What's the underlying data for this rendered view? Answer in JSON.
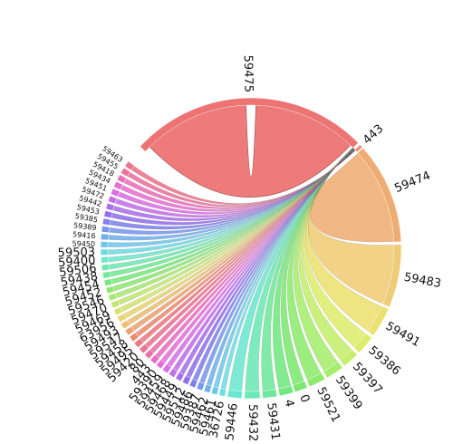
{
  "chart_data": {
    "type": "chord",
    "title": "",
    "segments": [
      {
        "label": "59475",
        "color": "#ee7373"
      },
      {
        "label": "443",
        "color": "#ec8a6d"
      },
      {
        "label": "59474",
        "color": "#eeac72"
      },
      {
        "label": "59483",
        "color": "#efcc76"
      },
      {
        "label": "59491",
        "color": "#ece070"
      },
      {
        "label": "59386",
        "color": "#dced6b"
      },
      {
        "label": "59397",
        "color": "#c4ee6c"
      },
      {
        "label": "59399",
        "color": "#a6ed6c"
      },
      {
        "label": "59521",
        "color": "#8eea6e"
      },
      {
        "label": "0",
        "color": "#7ce871"
      },
      {
        "label": "4",
        "color": "#72e880"
      },
      {
        "label": "59431",
        "color": "#6fe79a"
      },
      {
        "label": "59432",
        "color": "#6ce8b6"
      },
      {
        "label": "59446",
        "color": "#6ce6cf"
      },
      {
        "label": "36726",
        "color": "#6ddde6"
      },
      {
        "label": "59461",
        "color": "#6ec8ea"
      },
      {
        "label": "59462",
        "color": "#70b0ec"
      },
      {
        "label": "59387",
        "color": "#7898ee"
      },
      {
        "label": "59486",
        "color": "#7e80ee"
      },
      {
        "label": "59512",
        "color": "#906fee"
      },
      {
        "label": "59449",
        "color": "#a96eee"
      },
      {
        "label": "59468",
        "color": "#c16eec"
      },
      {
        "label": "59459",
        "color": "#d86fe8"
      },
      {
        "label": "59390",
        "color": "#e56ed9"
      },
      {
        "label": "443",
        "color": "#e86ec0"
      },
      {
        "label": "80",
        "color": "#ea70a8"
      },
      {
        "label": "59420",
        "color": "#ec7292"
      },
      {
        "label": "59495",
        "color": "#ec7680"
      },
      {
        "label": "59458",
        "color": "#ec8a70"
      },
      {
        "label": "59547",
        "color": "#eca26f"
      },
      {
        "label": "59493",
        "color": "#ecbd72"
      },
      {
        "label": "63956",
        "color": "#e6d470"
      },
      {
        "label": "59469",
        "color": "#d5e46f"
      },
      {
        "label": "59470",
        "color": "#bfe86f"
      },
      {
        "label": "59546",
        "color": "#a6e870"
      },
      {
        "label": "59452",
        "color": "#8ce872"
      },
      {
        "label": "59454",
        "color": "#78e87a"
      },
      {
        "label": "59438",
        "color": "#70e894"
      },
      {
        "label": "59506",
        "color": "#6ee8b0"
      },
      {
        "label": "59400",
        "color": "#6ee6cb"
      },
      {
        "label": "59503",
        "color": "#6edbe3"
      },
      {
        "label": "59450",
        "color": "#70c6ea"
      },
      {
        "label": "59416",
        "color": "#72aeec"
      },
      {
        "label": "59389",
        "color": "#7896ee"
      },
      {
        "label": "59385",
        "color": "#8080ee"
      },
      {
        "label": "59453",
        "color": "#936eee"
      },
      {
        "label": "59442",
        "color": "#ab6eec"
      },
      {
        "label": "59472",
        "color": "#c46eea"
      },
      {
        "label": "59451",
        "color": "#db6ee4"
      },
      {
        "label": "59434",
        "color": "#e86ed0"
      },
      {
        "label": "59418",
        "color": "#ea6fb6"
      },
      {
        "label": "59455",
        "color": "#ec709c"
      },
      {
        "label": "59463",
        "color": "#ec7286"
      }
    ]
  }
}
